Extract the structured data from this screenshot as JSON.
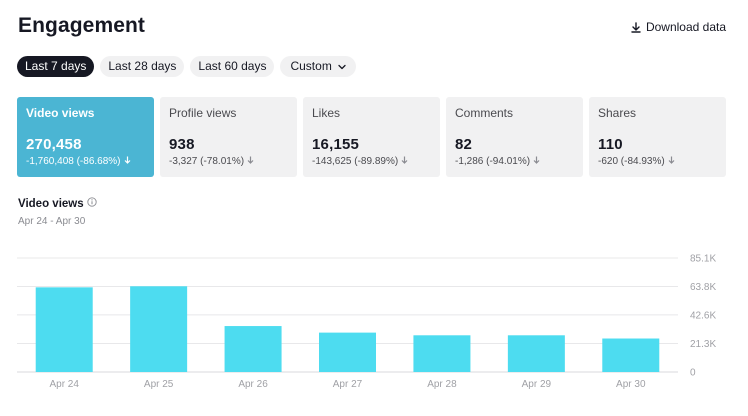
{
  "title": "Engagement",
  "download_label": "Download data",
  "ranges": [
    {
      "label": "Last 7 days",
      "active": true
    },
    {
      "label": "Last 28 days",
      "active": false
    },
    {
      "label": "Last 60 days",
      "active": false
    }
  ],
  "custom_label": "Custom",
  "cards": [
    {
      "label": "Video views",
      "value": "270,458",
      "delta": "-1,760,408 (-86.68%)",
      "active": true
    },
    {
      "label": "Profile views",
      "value": "938",
      "delta": "-3,327 (-78.01%)",
      "active": false
    },
    {
      "label": "Likes",
      "value": "16,155",
      "delta": "-143,625 (-89.89%)",
      "active": false
    },
    {
      "label": "Comments",
      "value": "82",
      "delta": "-1,286 (-94.01%)",
      "active": false
    },
    {
      "label": "Shares",
      "value": "110",
      "delta": "-620 (-84.93%)",
      "active": false
    }
  ],
  "chart_heading": "Video views",
  "chart_range": "Apr 24 - Apr 30",
  "colors": {
    "accent": "#4bb5d3",
    "bar": "#4ddcf0",
    "chip_active": "#161823"
  },
  "chart_data": {
    "type": "bar",
    "categories": [
      "Apr 24",
      "Apr 25",
      "Apr 26",
      "Apr 27",
      "Apr 28",
      "Apr 29",
      "Apr 30"
    ],
    "values": [
      63200,
      64000,
      34300,
      29400,
      27400,
      27400,
      25000
    ],
    "ylim": [
      0,
      85100
    ],
    "yticks": [
      0,
      21300,
      42600,
      63800,
      85100
    ],
    "ytick_labels": [
      "0",
      "21.3K",
      "42.6K",
      "63.8K",
      "85.1K"
    ],
    "grid": true
  }
}
